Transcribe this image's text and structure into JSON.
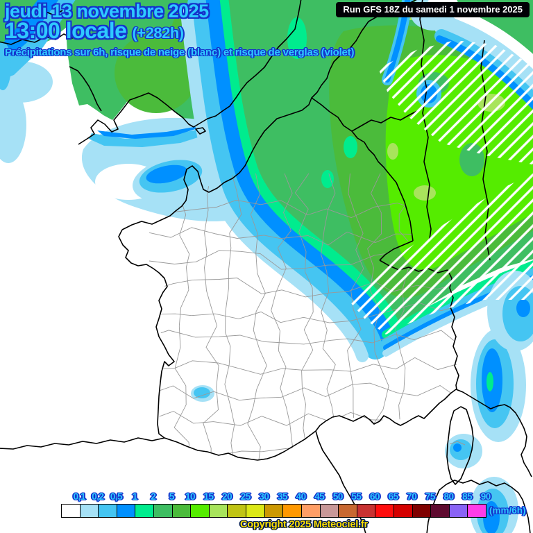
{
  "header": {
    "date_line": "jeudi 13 novembre 2025",
    "time_line": "13:00 locale",
    "forecast_offset": "(+282h)",
    "subtitle": "Précipitations sur 6h, risque de neige (blanc) et risque de verglas (violet)",
    "run_label": "Run GFS 18Z du samedi 1 novembre 2025"
  },
  "legend": {
    "unit_label": "(mm/6h)",
    "values": [
      "0,1",
      "0,2",
      "0,5",
      "1",
      "2",
      "5",
      "10",
      "15",
      "20",
      "25",
      "30",
      "35",
      "40",
      "45",
      "50",
      "55",
      "60",
      "65",
      "70",
      "75",
      "80",
      "85",
      "90"
    ],
    "colors": [
      "#FFFFFF",
      "#A6E1F6",
      "#45C5F2",
      "#0090FF",
      "#00EC8E",
      "#3EBE62",
      "#4BBB3B",
      "#55EC00",
      "#A8E45C",
      "#C0C414",
      "#DCE816",
      "#CC9802",
      "#FF9800",
      "#FF9E66",
      "#C89898",
      "#C86832",
      "#C83232",
      "#FF0E0E",
      "#D40000",
      "#7F0000",
      "#5E0A2F",
      "#8A63F5",
      "#FF3CE8"
    ]
  },
  "footer": {
    "copyright": "Copyright 2025 Meteociel.fr"
  },
  "colors": {
    "title_text": "#2FC9FF",
    "title_outline": "#1433CC",
    "run_box_bg": "#000005",
    "run_box_text": "#FFFFFF",
    "copyright_text": "#FFE000",
    "snow_hatch": "#FFFFFF"
  }
}
